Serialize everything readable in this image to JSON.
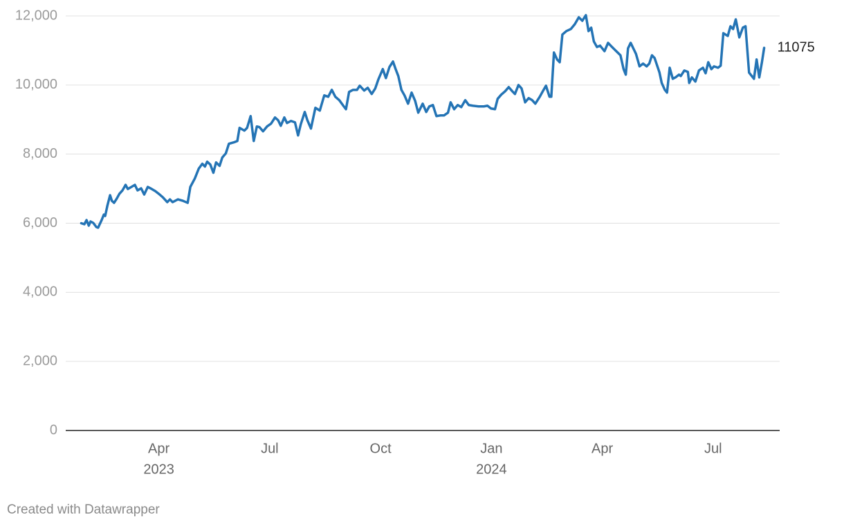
{
  "chart_data": {
    "type": "line",
    "color": "#2474b5",
    "grid": true,
    "credit": "Created with Datawrapper",
    "xlim": [
      2023.04,
      2024.65
    ],
    "xticks": [
      {
        "value": 2023.25,
        "label": [
          "Apr",
          "2023"
        ]
      },
      {
        "value": 2023.5,
        "label": "Jul"
      },
      {
        "value": 2023.75,
        "label": "Oct"
      },
      {
        "value": 2024.0,
        "label": [
          "Jan",
          "2024"
        ]
      },
      {
        "value": 2024.25,
        "label": "Apr"
      },
      {
        "value": 2024.5,
        "label": "Jul"
      }
    ],
    "ylim": [
      0,
      12000
    ],
    "yticks": [
      0,
      {
        "value": 2000,
        "label": "2,000"
      },
      {
        "value": 4000,
        "label": "4,000"
      },
      {
        "value": 6000,
        "label": "6,000"
      },
      {
        "value": 8000,
        "label": "8,000"
      },
      {
        "value": 10000,
        "label": "10,000"
      },
      {
        "value": 12000,
        "label": "12,000"
      }
    ],
    "x": [
      2023.075,
      2023.082,
      2023.087,
      2023.092,
      2023.096,
      2023.102,
      2023.109,
      2023.113,
      2023.121,
      2023.126,
      2023.129,
      2023.134,
      2023.14,
      2023.144,
      2023.149,
      2023.155,
      2023.161,
      2023.168,
      2023.175,
      2023.18,
      2023.188,
      2023.196,
      2023.202,
      2023.21,
      2023.217,
      2023.225,
      2023.234,
      2023.242,
      2023.25,
      2023.259,
      2023.269,
      2023.275,
      2023.281,
      2023.293,
      2023.304,
      2023.315,
      2023.321,
      2023.331,
      2023.34,
      2023.348,
      2023.354,
      2023.359,
      2023.366,
      2023.373,
      2023.379,
      2023.387,
      2023.393,
      2023.401,
      2023.408,
      2023.419,
      2023.427,
      2023.432,
      2023.443,
      2023.449,
      2023.457,
      2023.464,
      2023.471,
      2023.477,
      2023.485,
      2023.494,
      2023.503,
      2023.512,
      2023.519,
      2023.525,
      2023.533,
      2023.539,
      2023.548,
      2023.557,
      2023.564,
      2023.57,
      2023.579,
      2023.585,
      2023.593,
      2023.603,
      2023.613,
      2023.623,
      2023.632,
      2023.64,
      2023.648,
      2023.657,
      2023.666,
      2023.672,
      2023.679,
      2023.688,
      2023.697,
      2023.703,
      2023.713,
      2023.721,
      2023.73,
      2023.738,
      2023.745,
      2023.755,
      2023.762,
      2023.77,
      2023.778,
      2023.784,
      2023.79,
      2023.797,
      2023.804,
      2023.812,
      2023.82,
      2023.828,
      2023.835,
      2023.845,
      2023.853,
      2023.86,
      2023.868,
      2023.876,
      2023.885,
      2023.893,
      2023.902,
      2023.908,
      2023.916,
      2023.924,
      2023.932,
      2023.941,
      2023.949,
      2023.958,
      2023.971,
      2023.983,
      2023.991,
      2023.999,
      2024.008,
      2024.014,
      2024.022,
      2024.031,
      2024.039,
      2024.047,
      2024.053,
      2024.061,
      2024.068,
      2024.076,
      2024.084,
      2024.092,
      2024.099,
      2024.109,
      2024.115,
      2024.123,
      2024.131,
      2024.135,
      2024.141,
      2024.148,
      2024.154,
      2024.16,
      2024.169,
      2024.179,
      2024.188,
      2024.197,
      2024.205,
      2024.213,
      2024.219,
      2024.225,
      2024.231,
      2024.238,
      2024.245,
      2024.255,
      2024.263,
      2024.272,
      2024.283,
      2024.291,
      2024.298,
      2024.303,
      2024.308,
      2024.314,
      2024.32,
      2024.326,
      2024.334,
      2024.342,
      2024.35,
      2024.356,
      2024.362,
      2024.368,
      2024.379,
      2024.384,
      2024.391,
      2024.396,
      2024.402,
      2024.409,
      2024.415,
      2024.423,
      2024.427,
      2024.435,
      2024.443,
      2024.446,
      2024.452,
      2024.46,
      2024.468,
      2024.477,
      2024.483,
      2024.489,
      2024.496,
      2024.502,
      2024.511,
      2024.517,
      2024.523,
      2024.533,
      2024.539,
      2024.545,
      2024.551,
      2024.559,
      2024.567,
      2024.573,
      2024.581,
      2024.592,
      2024.598,
      2024.604,
      2024.61,
      2024.615
    ],
    "values": [
      6000,
      5970,
      6090,
      5930,
      6050,
      6010,
      5890,
      5870,
      6090,
      6250,
      6210,
      6510,
      6810,
      6650,
      6590,
      6710,
      6850,
      6950,
      7110,
      6990,
      7050,
      7110,
      6950,
      7010,
      6830,
      7050,
      6990,
      6930,
      6850,
      6750,
      6610,
      6690,
      6610,
      6690,
      6650,
      6590,
      7050,
      7290,
      7580,
      7720,
      7640,
      7780,
      7700,
      7460,
      7760,
      7660,
      7900,
      8020,
      8300,
      8340,
      8380,
      8760,
      8680,
      8760,
      9100,
      8380,
      8800,
      8780,
      8660,
      8800,
      8880,
      9060,
      8980,
      8820,
      9060,
      8900,
      8960,
      8920,
      8540,
      8860,
      9220,
      8980,
      8740,
      9340,
      9260,
      9700,
      9660,
      9860,
      9660,
      9560,
      9400,
      9300,
      9800,
      9860,
      9860,
      9980,
      9840,
      9920,
      9740,
      9900,
      10160,
      10460,
      10200,
      10520,
      10680,
      10460,
      10260,
      9860,
      9700,
      9460,
      9780,
      9540,
      9200,
      9460,
      9220,
      9380,
      9420,
      9100,
      9120,
      9120,
      9200,
      9500,
      9300,
      9420,
      9360,
      9560,
      9420,
      9400,
      9380,
      9380,
      9400,
      9320,
      9300,
      9600,
      9720,
      9820,
      9940,
      9820,
      9740,
      10000,
      9900,
      9500,
      9620,
      9560,
      9460,
      9660,
      9800,
      9980,
      9660,
      9660,
      10940,
      10740,
      10660,
      11460,
      11560,
      11620,
      11760,
      11960,
      11860,
      12020,
      11560,
      11660,
      11260,
      11100,
      11140,
      10980,
      11220,
      11100,
      10960,
      10860,
      10460,
      10300,
      11060,
      11220,
      11060,
      10900,
      10540,
      10620,
      10540,
      10620,
      10860,
      10780,
      10360,
      10060,
      9860,
      9780,
      10500,
      10180,
      10220,
      10300,
      10260,
      10420,
      10380,
      10060,
      10220,
      10100,
      10420,
      10500,
      10340,
      10660,
      10460,
      10540,
      10500,
      10560,
      11500,
      11420,
      11700,
      11620,
      11900,
      11380,
      11660,
      11700,
      10360,
      10180,
      10740,
      10220,
      10660,
      11075
    ]
  }
}
